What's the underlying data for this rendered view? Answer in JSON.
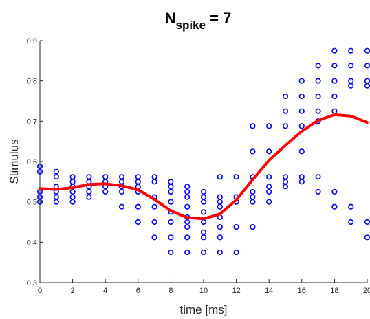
{
  "chart_data": {
    "type": "scatter",
    "title_main": "N",
    "title_sub": "spike",
    "title_rest": " = 7",
    "xlabel": "time [ms]",
    "ylabel": "Stimulus",
    "xlim": [
      0,
      20
    ],
    "ylim": [
      0.3,
      0.9
    ],
    "xticks": [
      "0",
      "2",
      "4",
      "6",
      "8",
      "10",
      "12",
      "14",
      "16",
      "18",
      "20"
    ],
    "yticks": [
      "0.3",
      "0.4",
      "0.5",
      "0.6",
      "0.7",
      "0.8",
      "0.9"
    ],
    "grid": false,
    "colors": {
      "points": "#0000ff",
      "mean_line": "#ff0000",
      "axis": "#262626"
    },
    "points": {
      "name": "",
      "columns": [
        {
          "t": 0,
          "y": [
            0.588,
            0.575,
            0.525,
            0.512,
            0.5
          ]
        },
        {
          "t": 1,
          "y": [
            0.575,
            0.562,
            0.538,
            0.525,
            0.512,
            0.5
          ]
        },
        {
          "t": 2,
          "y": [
            0.562,
            0.55,
            0.538,
            0.525,
            0.512,
            0.5
          ]
        },
        {
          "t": 3,
          "y": [
            0.562,
            0.55,
            0.538,
            0.525,
            0.512
          ]
        },
        {
          "t": 4,
          "y": [
            0.562,
            0.55,
            0.538,
            0.525
          ]
        },
        {
          "t": 5,
          "y": [
            0.562,
            0.55,
            0.538,
            0.525,
            0.488
          ]
        },
        {
          "t": 6,
          "y": [
            0.562,
            0.55,
            0.538,
            0.525,
            0.488,
            0.45
          ]
        },
        {
          "t": 7,
          "y": [
            0.562,
            0.55,
            0.512,
            0.488,
            0.45,
            0.412
          ]
        },
        {
          "t": 8,
          "y": [
            0.55,
            0.538,
            0.525,
            0.5,
            0.475,
            0.45,
            0.412,
            0.375
          ]
        },
        {
          "t": 9,
          "y": [
            0.538,
            0.525,
            0.512,
            0.488,
            0.462,
            0.45,
            0.438,
            0.412,
            0.375
          ]
        },
        {
          "t": 10,
          "y": [
            0.525,
            0.512,
            0.5,
            0.475,
            0.45,
            0.425,
            0.412,
            0.375
          ]
        },
        {
          "t": 11,
          "y": [
            0.562,
            0.512,
            0.5,
            0.488,
            0.462,
            0.438,
            0.412,
            0.375
          ]
        },
        {
          "t": 12,
          "y": [
            0.562,
            0.512,
            0.5,
            0.438,
            0.375
          ]
        },
        {
          "t": 13,
          "y": [
            0.688,
            0.625,
            0.562,
            0.525,
            0.512,
            0.5,
            0.438
          ]
        },
        {
          "t": 14,
          "y": [
            0.688,
            0.625,
            0.562,
            0.538,
            0.525,
            0.5
          ]
        },
        {
          "t": 15,
          "y": [
            0.762,
            0.725,
            0.688,
            0.562,
            0.55,
            0.538
          ]
        },
        {
          "t": 16,
          "y": [
            0.8,
            0.762,
            0.725,
            0.688,
            0.625,
            0.562,
            0.55
          ]
        },
        {
          "t": 17,
          "y": [
            0.838,
            0.8,
            0.762,
            0.725,
            0.7,
            0.562,
            0.525
          ]
        },
        {
          "t": 18,
          "y": [
            0.875,
            0.838,
            0.8,
            0.762,
            0.725,
            0.525,
            0.488
          ]
        },
        {
          "t": 19,
          "y": [
            0.875,
            0.838,
            0.8,
            0.788,
            0.488,
            0.45
          ]
        },
        {
          "t": 20,
          "y": [
            0.875,
            0.838,
            0.8,
            0.788,
            0.45,
            0.412
          ]
        }
      ]
    },
    "mean_line": {
      "name": "",
      "x": [
        0,
        1,
        2,
        3,
        4,
        5,
        6,
        7,
        8,
        9,
        10,
        11,
        12,
        13,
        14,
        15,
        16,
        17,
        18,
        19,
        20
      ],
      "y": [
        0.533,
        0.531,
        0.535,
        0.543,
        0.545,
        0.54,
        0.53,
        0.506,
        0.478,
        0.461,
        0.458,
        0.47,
        0.505,
        0.555,
        0.603,
        0.64,
        0.675,
        0.702,
        0.716,
        0.713,
        0.697
      ]
    }
  }
}
